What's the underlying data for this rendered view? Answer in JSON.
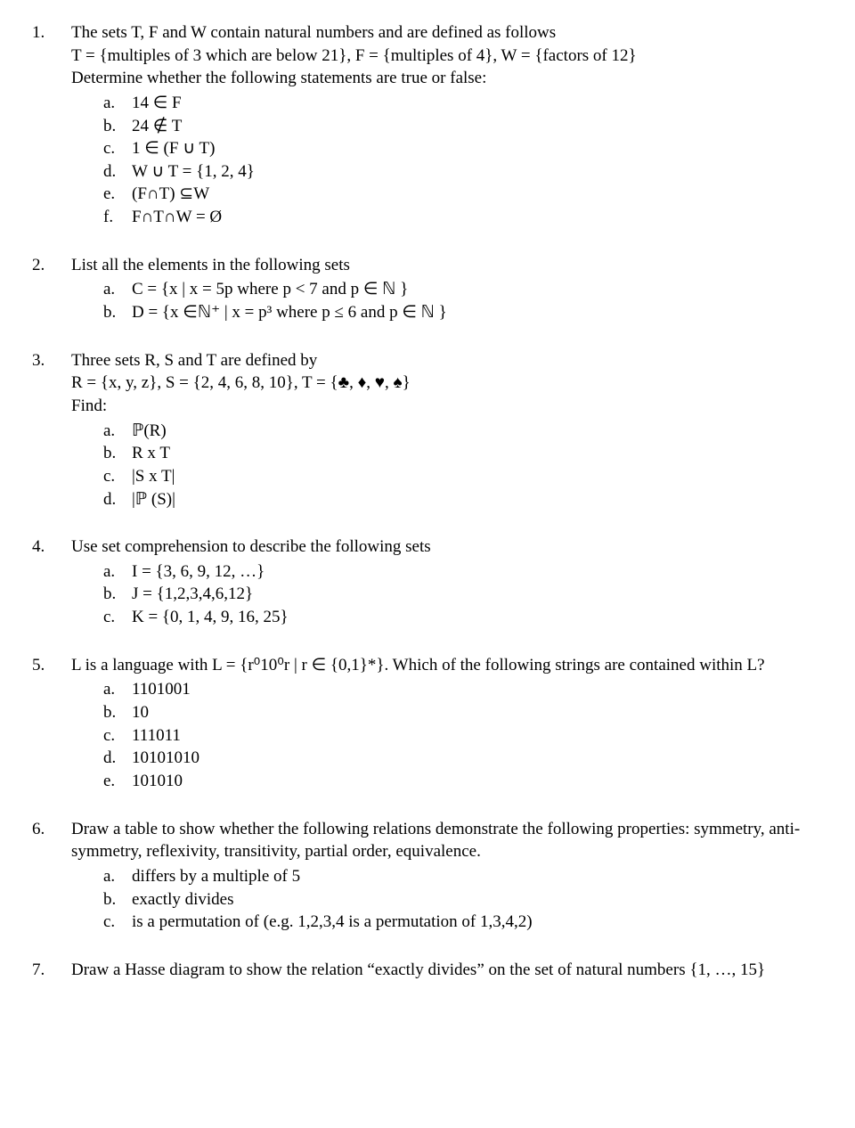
{
  "questions": [
    {
      "num": "1.",
      "intro_lines": [
        "The sets T, F and W contain natural numbers and are defined as follows",
        "T = {multiples of 3 which are below 21},  F = {multiples of 4}, W = {factors of 12}",
        "Determine whether the following statements are true or false:"
      ],
      "items": [
        {
          "label": "a.",
          "text": "14 ∈ F"
        },
        {
          "label": "b.",
          "text": "24 ∉ T"
        },
        {
          "label": "c.",
          "text": "1 ∈ (F ∪ T)"
        },
        {
          "label": "d.",
          "text": "W ∪ T = {1, 2, 4}"
        },
        {
          "label": "e.",
          "text": "(F∩T) ⊆W"
        },
        {
          "label": "f.",
          "text": "F∩T∩W = Ø"
        }
      ]
    },
    {
      "num": "2.",
      "intro_lines": [
        "List all the elements in the following sets"
      ],
      "items": [
        {
          "label": "a.",
          "text": "C = {x | x = 5p where p < 7 and p ∈ ℕ }"
        },
        {
          "label": "b.",
          "text": "D = {x ∈ℕ⁺ | x = p³ where p ≤ 6 and p ∈ ℕ }"
        }
      ]
    },
    {
      "num": "3.",
      "intro_lines": [
        "Three sets R, S and T are defined by",
        "R = {x, y, z},  S = {2, 4, 6, 8, 10},  T = {♣, ♦, ♥, ♠}",
        "Find:"
      ],
      "items": [
        {
          "label": "a.",
          "text": "ℙ(R)"
        },
        {
          "label": "b.",
          "text": "R x T"
        },
        {
          "label": "c.",
          "text": "|S x T|"
        },
        {
          "label": "d.",
          "text": "|ℙ (S)|"
        }
      ]
    },
    {
      "num": "4.",
      "intro_lines": [
        "Use set comprehension to describe the following sets"
      ],
      "items": [
        {
          "label": "a.",
          "text": "I = {3, 6, 9, 12, …}"
        },
        {
          "label": "b.",
          "text": "J = {1,2,3,4,6,12}"
        },
        {
          "label": "c.",
          "text": "K = {0, 1, 4, 9, 16, 25}"
        }
      ]
    },
    {
      "num": "5.",
      "intro_lines": [
        "L is a language with L = {r⁰10⁰r | r ∈ {0,1}*}. Which of the following strings are contained within L?"
      ],
      "items": [
        {
          "label": "a.",
          "text": "1101001"
        },
        {
          "label": "b.",
          "text": "10"
        },
        {
          "label": "c.",
          "text": "111011"
        },
        {
          "label": "d.",
          "text": "10101010"
        },
        {
          "label": "e.",
          "text": "101010"
        }
      ]
    },
    {
      "num": "6.",
      "intro_lines": [
        "Draw a table to show whether the following relations demonstrate the following properties: symmetry, anti-symmetry, reflexivity, transitivity, partial order, equivalence."
      ],
      "items": [
        {
          "label": "a.",
          "text": "differs by a multiple of 5"
        },
        {
          "label": "b.",
          "text": "exactly divides"
        },
        {
          "label": "c.",
          "text": "is a permutation of (e.g. 1,2,3,4 is a permutation of 1,3,4,2)"
        }
      ]
    },
    {
      "num": "7.",
      "intro_lines": [
        "Draw a Hasse diagram to show the relation “exactly divides” on the set of natural numbers {1, …, 15}"
      ],
      "items": []
    }
  ]
}
